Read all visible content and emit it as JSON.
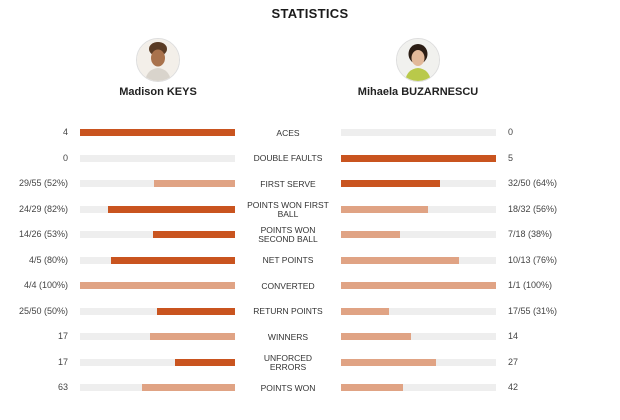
{
  "title": "STATISTICS",
  "players": [
    {
      "name": "Madison KEYS",
      "icon": "player-photo-icon"
    },
    {
      "name": "Mihaela BUZARNESCU",
      "icon": "player-photo-icon"
    }
  ],
  "colors": {
    "win": "#c9541f",
    "lose": "#e0a384",
    "track": "#eeeeee"
  },
  "stats": [
    {
      "label": "ACES",
      "left": "4",
      "right": "0",
      "left_frac": 1.0,
      "right_frac": 0.0,
      "winner": "left"
    },
    {
      "label": "DOUBLE FAULTS",
      "left": "0",
      "right": "5",
      "left_frac": 0.0,
      "right_frac": 1.0,
      "winner": "right"
    },
    {
      "label": "FIRST SERVE",
      "left": "29/55 (52%)",
      "right": "32/50 (64%)",
      "left_frac": 0.52,
      "right_frac": 0.64,
      "winner": "right"
    },
    {
      "label": "POINTS WON FIRST BALL",
      "left": "24/29 (82%)",
      "right": "18/32 (56%)",
      "left_frac": 0.82,
      "right_frac": 0.56,
      "winner": "left"
    },
    {
      "label": "POINTS WON SECOND BALL",
      "left": "14/26 (53%)",
      "right": "7/18 (38%)",
      "left_frac": 0.53,
      "right_frac": 0.38,
      "winner": "left"
    },
    {
      "label": "NET POINTS",
      "left": "4/5 (80%)",
      "right": "10/13 (76%)",
      "left_frac": 0.8,
      "right_frac": 0.76,
      "winner": "left"
    },
    {
      "label": "CONVERTED",
      "left": "4/4 (100%)",
      "right": "1/1 (100%)",
      "left_frac": 1.0,
      "right_frac": 1.0,
      "winner": "none"
    },
    {
      "label": "RETURN POINTS",
      "left": "25/50 (50%)",
      "right": "17/55 (31%)",
      "left_frac": 0.5,
      "right_frac": 0.31,
      "winner": "left"
    },
    {
      "label": "WINNERS",
      "left": "17",
      "right": "14",
      "left_frac": 0.548,
      "right_frac": 0.452,
      "winner": "none"
    },
    {
      "label": "UNFORCED ERRORS",
      "left": "17",
      "right": "27",
      "left_frac": 0.386,
      "right_frac": 0.614,
      "winner": "left"
    },
    {
      "label": "POINTS WON",
      "left": "63",
      "right": "42",
      "left_frac": 0.6,
      "right_frac": 0.4,
      "winner": "none"
    }
  ]
}
